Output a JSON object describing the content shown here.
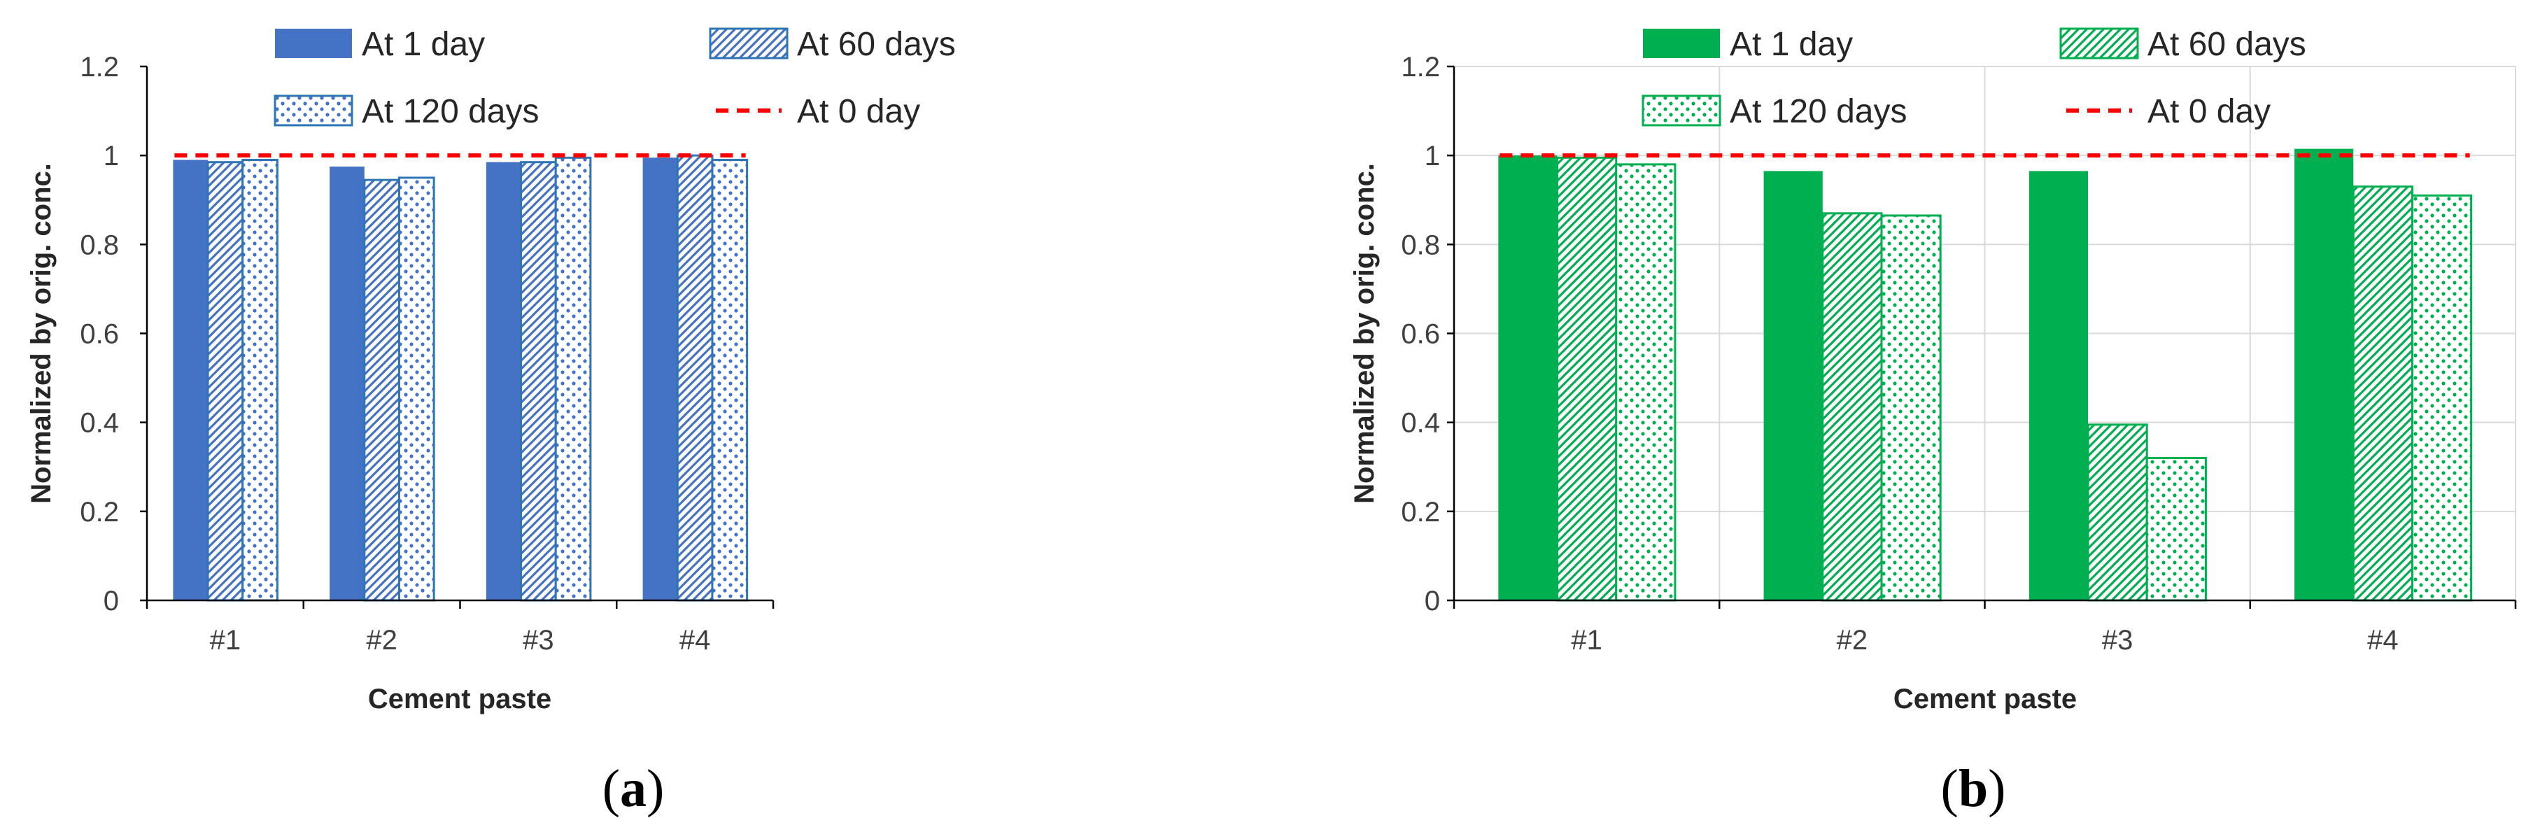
{
  "chart_data": [
    {
      "type": "bar",
      "caption_letter": "a",
      "categories": [
        "#1",
        "#2",
        "#3",
        "#4"
      ],
      "series": [
        {
          "name": "At 1 day",
          "pattern": "solid",
          "values": [
            0.99,
            0.975,
            0.985,
            0.995
          ]
        },
        {
          "name": "At 60 days",
          "pattern": "hatch",
          "values": [
            0.985,
            0.945,
            0.985,
            1.0
          ]
        },
        {
          "name": "At 120 days",
          "pattern": "dots",
          "values": [
            0.99,
            0.95,
            0.995,
            0.99
          ]
        }
      ],
      "reference_line": {
        "name": "At 0 day",
        "value": 1.0
      },
      "xlabel": "Cement paste",
      "ylabel": "Normalized by orig. conc.",
      "ylim": [
        0,
        1.2
      ],
      "yticks": [
        "0",
        "0.2",
        "0.4",
        "0.6",
        "0.8",
        "1",
        "1.2"
      ],
      "grid": false,
      "color": "#4472c4",
      "edge_color": "#2e75b6"
    },
    {
      "type": "bar",
      "caption_letter": "b",
      "categories": [
        "#1",
        "#2",
        "#3",
        "#4"
      ],
      "series": [
        {
          "name": "At 1 day",
          "pattern": "solid",
          "values": [
            1.0,
            0.965,
            0.965,
            1.015
          ]
        },
        {
          "name": "At 60 days",
          "pattern": "hatch",
          "values": [
            0.995,
            0.87,
            0.395,
            0.93
          ]
        },
        {
          "name": "At 120 days",
          "pattern": "dots",
          "values": [
            0.98,
            0.865,
            0.32,
            0.91
          ]
        }
      ],
      "reference_line": {
        "name": "At 0 day",
        "value": 1.0
      },
      "xlabel": "Cement paste",
      "ylabel": "Normalized by orig. conc.",
      "ylim": [
        0,
        1.2
      ],
      "yticks": [
        "0",
        "0.2",
        "0.4",
        "0.6",
        "0.8",
        "1",
        "1.2"
      ],
      "grid": true,
      "color": "#00b050",
      "edge_color": "#00b050"
    }
  ]
}
